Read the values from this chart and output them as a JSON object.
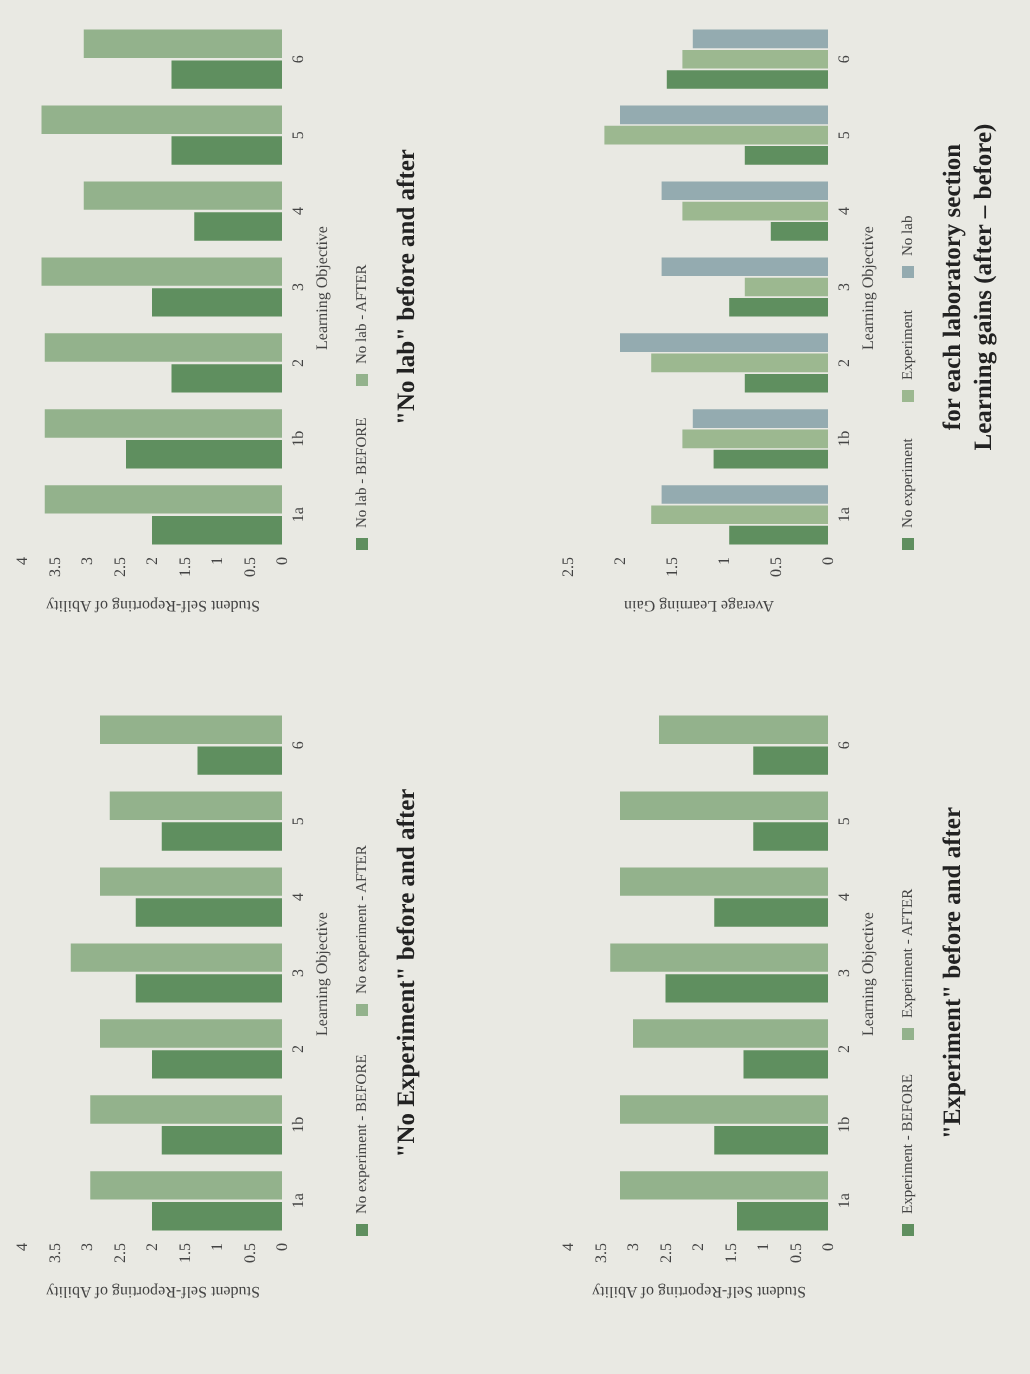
{
  "chart_data": [
    {
      "type": "bar",
      "orientation": "horizontal",
      "annotations": [
        "\"No lab\" before and after"
      ],
      "xlabel": "Student Self-Reporting of Ability",
      "ylabel": "Learning Objective",
      "categories": [
        "6",
        "5",
        "4",
        "3",
        "2",
        "1b",
        "1a"
      ],
      "xlim": [
        4,
        0
      ],
      "xticks": [
        0,
        0.5,
        1,
        1.5,
        2,
        2.5,
        3,
        3.5,
        4
      ],
      "legend": "right",
      "series": [
        {
          "name": "No lab - BEFORE",
          "color": "#5f8f5f",
          "values": [
            1.7,
            1.7,
            1.35,
            2.0,
            1.7,
            2.4,
            2.0
          ]
        },
        {
          "name": "No lab - AFTER",
          "color": "#93b28c",
          "values": [
            3.05,
            3.7,
            3.05,
            3.7,
            3.65,
            3.65,
            3.65
          ]
        }
      ]
    },
    {
      "type": "bar",
      "orientation": "horizontal",
      "annotations": [
        "Learning gains (after – before)",
        "for each laboratory section"
      ],
      "xlabel": "Average Learning Gain",
      "ylabel": "Learning Objective",
      "categories": [
        "6",
        "5",
        "4",
        "3",
        "2",
        "1b",
        "1a"
      ],
      "xlim": [
        2.5,
        0
      ],
      "xticks": [
        0,
        0.5,
        1,
        1.5,
        2,
        2.5
      ],
      "legend": "right",
      "series": [
        {
          "name": "No experiment",
          "color": "#5f8f5f",
          "values": [
            1.55,
            0.8,
            0.55,
            0.95,
            0.8,
            1.1,
            0.95
          ]
        },
        {
          "name": "Experiment",
          "color": "#9cb890",
          "values": [
            1.4,
            2.15,
            1.4,
            0.8,
            1.7,
            1.4,
            1.7
          ]
        },
        {
          "name": "No lab",
          "color": "#94abb0",
          "values": [
            1.3,
            2.0,
            1.6,
            1.6,
            2.0,
            1.3,
            1.6
          ]
        }
      ]
    },
    {
      "type": "bar",
      "orientation": "horizontal",
      "annotations": [
        "\"No Experiment\"  before and after"
      ],
      "xlabel": "Student Self-Reporting of Ability",
      "ylabel": "Learning Objective",
      "categories": [
        "6",
        "5",
        "4",
        "3",
        "2",
        "1b",
        "1a"
      ],
      "xlim": [
        4,
        0
      ],
      "xticks": [
        0,
        0.5,
        1,
        1.5,
        2,
        2.5,
        3,
        3.5,
        4
      ],
      "legend": "right",
      "series": [
        {
          "name": "No experiment - BEFORE",
          "color": "#5f8f5f",
          "values": [
            1.3,
            1.85,
            2.25,
            2.25,
            2.0,
            1.85,
            2.0
          ]
        },
        {
          "name": "No experiment - AFTER",
          "color": "#93b28c",
          "values": [
            2.8,
            2.65,
            2.8,
            3.25,
            2.8,
            2.95,
            2.95
          ]
        }
      ]
    },
    {
      "type": "bar",
      "orientation": "horizontal",
      "annotations": [
        "\"Experiment\" before and after"
      ],
      "xlabel": "Student Self-Reporting of Ability",
      "ylabel": "Learning Objective",
      "categories": [
        "6",
        "5",
        "4",
        "3",
        "2",
        "1b",
        "1a"
      ],
      "xlim": [
        4,
        0
      ],
      "xticks": [
        0,
        0.5,
        1,
        1.5,
        2,
        2.5,
        3,
        3.5,
        4
      ],
      "legend": "right",
      "series": [
        {
          "name": "Experiment - BEFORE",
          "color": "#5f8f5f",
          "values": [
            1.15,
            1.15,
            1.75,
            2.5,
            1.3,
            1.75,
            1.4
          ]
        },
        {
          "name": "Experiment - AFTER",
          "color": "#93b28c",
          "values": [
            2.6,
            3.2,
            3.2,
            3.35,
            3.0,
            3.2,
            3.2
          ]
        }
      ]
    }
  ]
}
